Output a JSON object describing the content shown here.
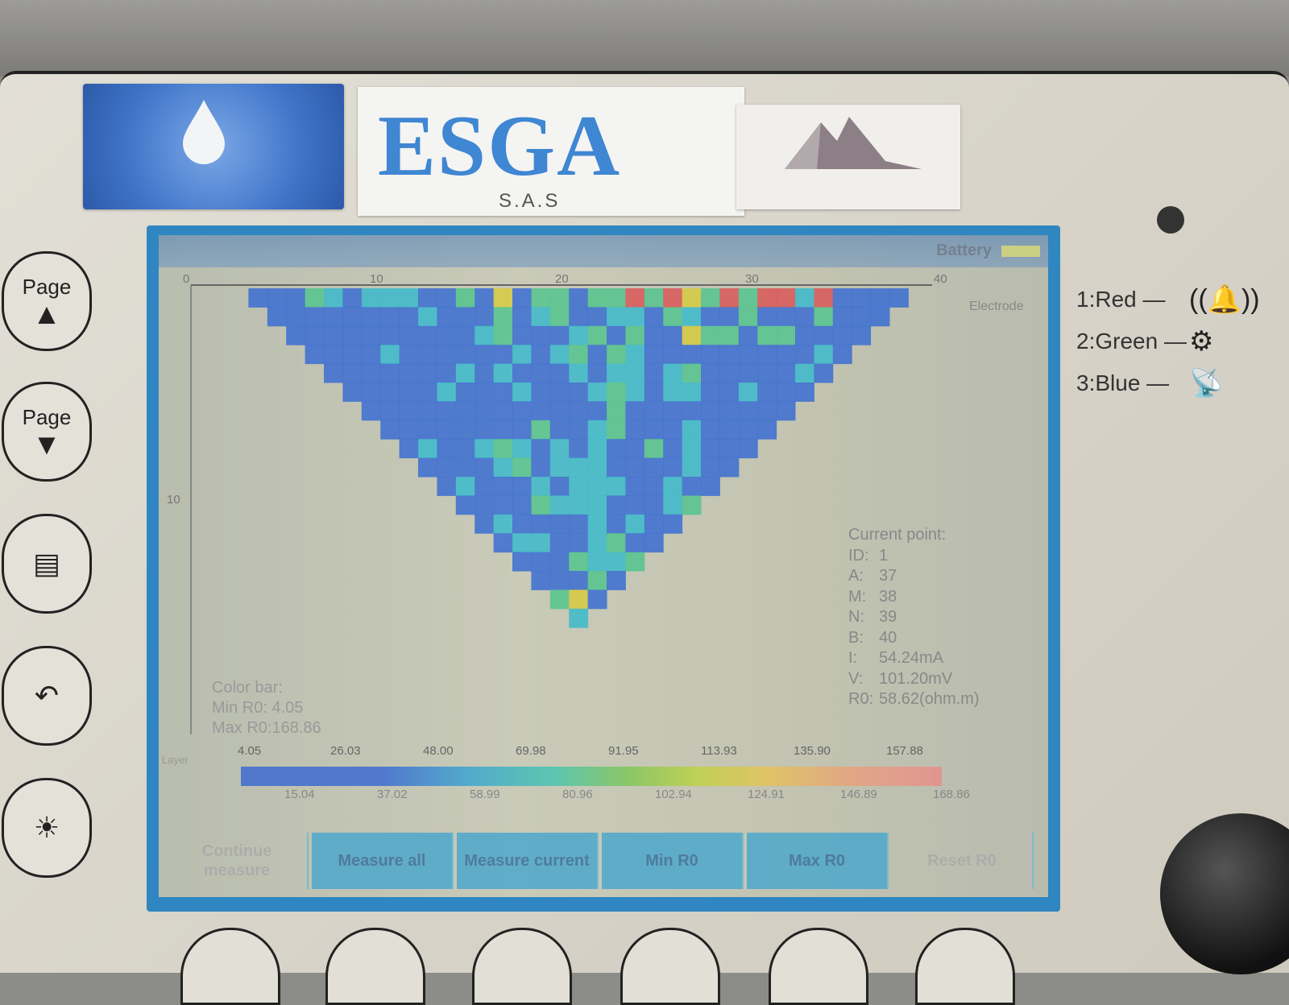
{
  "brand": {
    "name": "ESGA",
    "sub": "S.A.S"
  },
  "legend": [
    {
      "label": "1:Red —",
      "icon": "alarm-bell-icon",
      "glyph": "((🔔))"
    },
    {
      "label": "2:Green —",
      "icon": "gear-icon",
      "glyph": "⚙"
    },
    {
      "label": "3:Blue —",
      "icon": "satellite-icon",
      "glyph": "📡"
    }
  ],
  "side_buttons": [
    {
      "name": "page-up-button",
      "label": "Page",
      "glyph": "▲"
    },
    {
      "name": "page-down-button",
      "label": "Page",
      "glyph": "▼"
    },
    {
      "name": "menu-button",
      "label": "",
      "glyph": "▤"
    },
    {
      "name": "back-button",
      "label": "",
      "glyph": "↶"
    },
    {
      "name": "brightness-button",
      "label": "",
      "glyph": "☀"
    }
  ],
  "screen": {
    "titlebar": {
      "battery_label": "Battery"
    },
    "electrode_label": "Electrode",
    "x_ticks": [
      "0",
      "10",
      "20",
      "30",
      "40"
    ],
    "y_ticks": [
      "10"
    ],
    "current_point": {
      "heading": "Current point:",
      "rows": [
        {
          "key": "ID:",
          "value": "1"
        },
        {
          "key": "A:",
          "value": "37"
        },
        {
          "key": "M:",
          "value": "38"
        },
        {
          "key": "N:",
          "value": "39"
        },
        {
          "key": "B:",
          "value": "40"
        },
        {
          "key": "I:",
          "value": "54.24mA"
        },
        {
          "key": "V:",
          "value": "101.20mV"
        },
        {
          "key": "R0:",
          "value": "58.62(ohm.m)"
        }
      ]
    },
    "color_bar": {
      "heading": "Color bar:",
      "min": "Min R0: 4.05",
      "max": "Max R0:168.86",
      "ticks_top": [
        "4.05",
        "26.03",
        "48.00",
        "69.98",
        "91.95",
        "113.93",
        "135.90",
        "157.88"
      ],
      "ticks_bottom": [
        "15.04",
        "37.02",
        "58.99",
        "80.96",
        "102.94",
        "124.91",
        "146.89",
        "168.86"
      ]
    },
    "function_buttons": [
      {
        "label": "Continue measure",
        "enabled": false
      },
      {
        "label": "Measure all",
        "enabled": true
      },
      {
        "label": "Measure current",
        "enabled": true
      },
      {
        "label": "Min R0",
        "enabled": true
      },
      {
        "label": "Max R0",
        "enabled": true
      },
      {
        "label": "Reset R0",
        "enabled": false
      }
    ]
  },
  "colors": {
    "blue": "#3f6fd0",
    "cyan": "#40b9cb",
    "green": "#56c48e",
    "yellow": "#d6c943",
    "red": "#d85a5a",
    "screen_frame": "#2f86c0"
  }
}
